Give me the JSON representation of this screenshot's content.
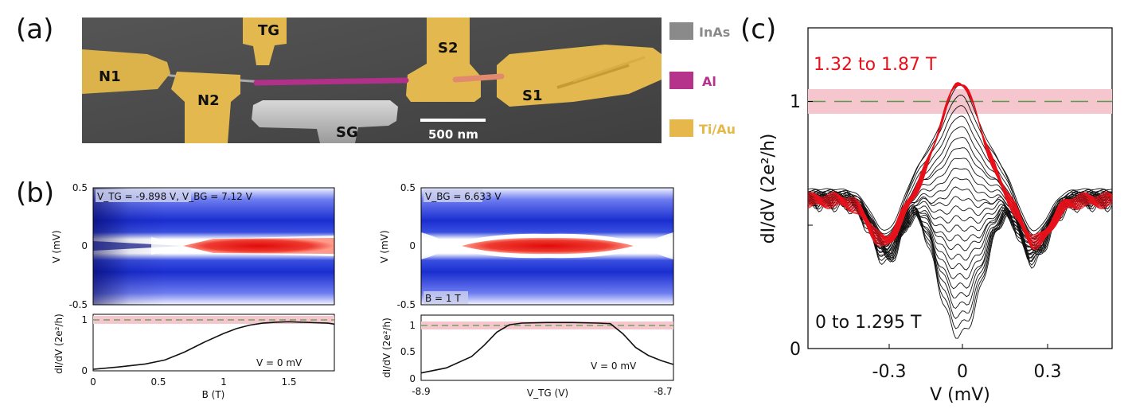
{
  "panel_labels": {
    "a": "(a)",
    "b": "(b)",
    "c": "(c)"
  },
  "sem": {
    "labels": {
      "tg": "TG",
      "s2": "S2",
      "n1": "N1",
      "n2": "N2",
      "sg": "SG",
      "s1": "S1"
    },
    "scalebar": "500 nm",
    "legend": [
      {
        "label": "InAs",
        "color": "#8a8a8a"
      },
      {
        "label": "Al",
        "color": "#b5338a"
      },
      {
        "label": "Ti/Au",
        "color": "#e6b74a"
      }
    ]
  },
  "chart_data": [
    {
      "type": "heatmap",
      "id": "b-left-map",
      "annotation_top": "V_TG = -9.898 V, V_BG = 7.12 V",
      "ylabel": "V (mV)",
      "yticks": [
        "0.5",
        "0",
        "-0.5"
      ],
      "ylim": [
        -0.5,
        0.5
      ],
      "xlim": [
        0,
        1.85
      ]
    },
    {
      "type": "line",
      "id": "b-left-trace",
      "xlabel": "B (T)",
      "ylabel": "dI/dV (2e²/h)",
      "xticks": [
        "0",
        "0.5",
        "1",
        "1.5"
      ],
      "yticks": [
        "1",
        "0"
      ],
      "xlim": [
        0,
        1.85
      ],
      "ylim": [
        0,
        1.15
      ],
      "annotation": "V = 0 mV",
      "x": [
        0,
        0.2,
        0.4,
        0.55,
        0.7,
        0.85,
        1.0,
        1.1,
        1.2,
        1.3,
        1.4,
        1.5,
        1.6,
        1.7,
        1.8,
        1.85
      ],
      "y": [
        0.03,
        0.08,
        0.14,
        0.22,
        0.38,
        0.58,
        0.76,
        0.86,
        0.93,
        0.97,
        0.99,
        1.0,
        0.99,
        0.98,
        0.97,
        0.95
      ]
    },
    {
      "type": "heatmap",
      "id": "b-right-map",
      "annotation_top": "V_BG = 6.633 V",
      "annotation_bottom": "B = 1 T",
      "ylabel": "V (mV)",
      "yticks": [
        "0.5",
        "0",
        "-0.5"
      ],
      "ylim": [
        -0.5,
        0.5
      ],
      "xlim": [
        -8.9,
        -8.7
      ]
    },
    {
      "type": "line",
      "id": "b-right-trace",
      "xlabel": "V_TG (V)",
      "ylabel": "dI/dV (2e²/h)",
      "xticks": [
        "-8.9",
        "-8.7"
      ],
      "yticks": [
        "1",
        "0.5",
        "0"
      ],
      "xlim": [
        -8.9,
        -8.7
      ],
      "ylim": [
        0,
        1.15
      ],
      "annotation": "V = 0 mV",
      "x": [
        -8.9,
        -8.88,
        -8.86,
        -8.85,
        -8.84,
        -8.83,
        -8.82,
        -8.8,
        -8.78,
        -8.76,
        -8.75,
        -8.74,
        -8.73,
        -8.72,
        -8.71,
        -8.7
      ],
      "y": [
        0.13,
        0.22,
        0.42,
        0.62,
        0.85,
        0.98,
        1.01,
        1.02,
        1.02,
        1.01,
        1.0,
        0.82,
        0.58,
        0.44,
        0.35,
        0.28
      ]
    },
    {
      "type": "line",
      "id": "c-traces",
      "xlabel": "V (mV)",
      "ylabel": "dI/dV (2e²/h)",
      "xticks": [
        "-0.3",
        "0",
        "0.3"
      ],
      "yticks": [
        "1",
        "0"
      ],
      "xlim": [
        -0.52,
        0.52
      ],
      "ylim": [
        0,
        1.23
      ],
      "quantized_level": 1,
      "red_label": "1.32 to 1.87 T",
      "black_label": "0 to 1.295 T",
      "series": [
        {
          "name": "black",
          "count": 26
        },
        {
          "name": "red",
          "count": 12
        }
      ]
    }
  ],
  "colors": {
    "red": "#e8101a",
    "band": "#f6c6cf",
    "dash": "#5a9a4a",
    "mapBlue": "#1226c8",
    "mapRed": "#e01010"
  }
}
